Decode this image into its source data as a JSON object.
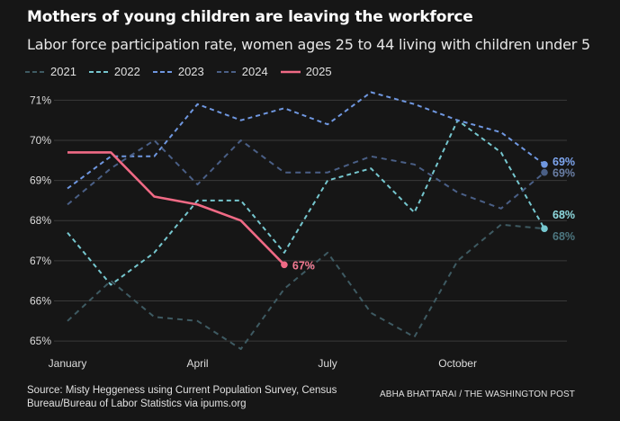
{
  "chart_data": {
    "type": "line",
    "title": "Mothers of young children are leaving the workforce",
    "subtitle": "Labor force participation rate, women ages 25 to 44 living with children under 5",
    "x": [
      1,
      2,
      3,
      4,
      5,
      6,
      7,
      8,
      9,
      10,
      11,
      12
    ],
    "x_tick_labels": [
      {
        "x": 1,
        "label": "January"
      },
      {
        "x": 4,
        "label": "April"
      },
      {
        "x": 7,
        "label": "July"
      },
      {
        "x": 10,
        "label": "October"
      }
    ],
    "y_ticks": [
      65,
      66,
      67,
      68,
      69,
      70,
      71
    ],
    "y_tick_suffix": "%",
    "ylim": [
      64.8,
      71.3
    ],
    "xlim": [
      1,
      12
    ],
    "grid": "horizontal",
    "legend_placement": "top-left",
    "series": [
      {
        "name": "2021",
        "color": "#3e5a62",
        "dash": "6,5",
        "values": [
          65.5,
          66.5,
          65.6,
          65.5,
          64.8,
          66.3,
          67.2,
          65.7,
          65.1,
          67.0,
          67.9,
          67.8
        ],
        "end_label": "68%",
        "end_label_color": "#4d7780"
      },
      {
        "name": "2022",
        "color": "#76c7cf",
        "dash": "5,4",
        "values": [
          67.7,
          66.4,
          67.2,
          68.5,
          68.5,
          67.2,
          69.0,
          69.3,
          68.2,
          70.5,
          69.7,
          67.8
        ],
        "end_label": "68%",
        "end_label_color": "#8fdbe0"
      },
      {
        "name": "2023",
        "color": "#6f97e0",
        "dash": "5,4",
        "values": [
          68.8,
          69.6,
          69.6,
          70.9,
          70.5,
          70.8,
          70.4,
          71.2,
          70.9,
          70.5,
          70.2,
          69.4
        ],
        "end_label": "69%",
        "end_label_color": "#7ea6f0"
      },
      {
        "name": "2024",
        "color": "#4a5f86",
        "dash": "6,5",
        "values": [
          68.4,
          69.3,
          70.0,
          68.9,
          70.0,
          69.2,
          69.2,
          69.6,
          69.4,
          68.7,
          68.3,
          69.2
        ],
        "end_label": "69%",
        "end_label_color": "#6a7fa6"
      },
      {
        "name": "2025",
        "color": "#f06a85",
        "dash": "",
        "values": [
          69.7,
          69.7,
          68.6,
          68.4,
          68.0,
          66.9,
          null,
          null,
          null,
          null,
          null,
          null
        ],
        "end_label": "67%",
        "end_label_color": "#f47a92"
      }
    ]
  },
  "source": "Source: Misty Heggeness using Current Population Survey, Census Bureau/Bureau of Labor Statistics via ipums.org",
  "credit": "ABHA BHATTARAI / THE WASHINGTON POST"
}
